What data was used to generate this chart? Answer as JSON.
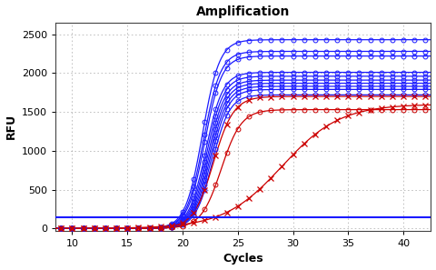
{
  "title": "Amplification",
  "xlabel": "Cycles",
  "ylabel": "RFU",
  "xlim": [
    8.5,
    42.5
  ],
  "ylim": [
    -30,
    2650
  ],
  "xticks": [
    10,
    15,
    20,
    25,
    30,
    35,
    40
  ],
  "yticks": [
    0,
    500,
    1000,
    1500,
    2000,
    2500
  ],
  "threshold_y": 145,
  "threshold_color": "#1a1aff",
  "background": "#ffffff",
  "grid_color": "#999999",
  "blue_circle_curves": {
    "color": "#1a1aff",
    "marker": "o",
    "plateaus": [
      2430,
      2280,
      2220,
      2010,
      1960,
      1910,
      1870,
      1830,
      1790,
      1720
    ],
    "midpoints": [
      21.8,
      21.9,
      22.0,
      22.1,
      22.2,
      22.3,
      22.4,
      22.5,
      22.6,
      22.7
    ],
    "steepness": 1.3
  },
  "red_circle_curve": {
    "color": "#cc0000",
    "marker": "o",
    "plateau": 1530,
    "midpoint": 23.5,
    "steepness": 1.1
  },
  "red_x_curve_fast": {
    "color": "#cc0000",
    "marker": "x",
    "plateau": 1700,
    "midpoint": 22.8,
    "steepness": 1.1
  },
  "red_x_curve_slow": {
    "color": "#cc0000",
    "marker": "x",
    "plateau": 1600,
    "midpoint": 29.0,
    "steepness": 0.38
  }
}
